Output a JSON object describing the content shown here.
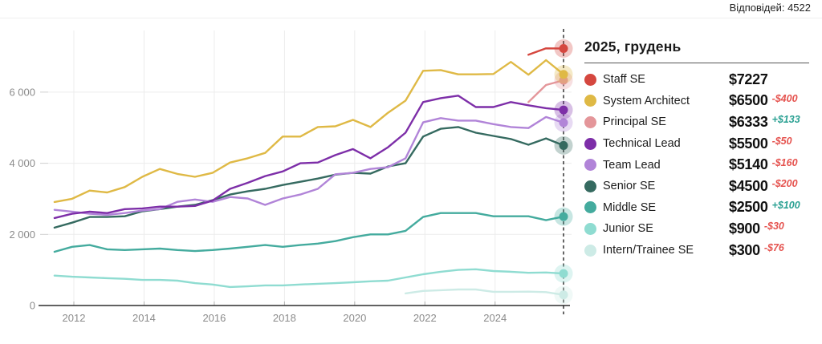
{
  "page": {
    "responses": "Відповідей: 4522"
  },
  "legend": {
    "title": "2025, грудень",
    "rows": [
      {
        "name": "Staff SE",
        "value": "$7227",
        "delta": null,
        "delta_type": null,
        "color": "#d5473f"
      },
      {
        "name": "System Architect",
        "value": "$6500",
        "delta": "-$400",
        "delta_type": "neg",
        "color": "#dfb945"
      },
      {
        "name": "Principal SE",
        "value": "$6333",
        "delta": "+$133",
        "delta_type": "pos",
        "color": "#e4969a"
      },
      {
        "name": "Technical Lead",
        "value": "$5500",
        "delta": "-$50",
        "delta_type": "neg",
        "color": "#7d2ea8"
      },
      {
        "name": "Team Lead",
        "value": "$5140",
        "delta": "-$160",
        "delta_type": "neg",
        "color": "#b184d8"
      },
      {
        "name": "Senior SE",
        "value": "$4500",
        "delta": "-$200",
        "delta_type": "neg",
        "color": "#356a60"
      },
      {
        "name": "Middle SE",
        "value": "$2500",
        "delta": "+$100",
        "delta_type": "pos",
        "color": "#44ab9e"
      },
      {
        "name": "Junior SE",
        "value": "$900",
        "delta": "-$30",
        "delta_type": "neg",
        "color": "#8fdcd1"
      },
      {
        "name": "Intern/Trainee SE",
        "value": "$300",
        "delta": "-$76",
        "delta_type": "neg",
        "color": "#cdebe6"
      }
    ]
  },
  "chart_data": {
    "type": "line",
    "title": "",
    "xlabel": "",
    "ylabel": "",
    "x_axis": {
      "ticks": [
        2012,
        2014,
        2016,
        2018,
        2020,
        2022,
        2024
      ],
      "min": 2010.9,
      "max": 2026.3
    },
    "y_axis": {
      "ticks": [
        {
          "value": 0,
          "label": "0"
        },
        {
          "value": 2000,
          "label": "2 000"
        },
        {
          "value": 4000,
          "label": "4 000"
        },
        {
          "value": 6000,
          "label": "6 000"
        }
      ],
      "min": 0,
      "max": 7700
    },
    "grid": true,
    "legend_position": "right",
    "current_marker_x": 2025.95,
    "series": [
      {
        "name": "Staff SE",
        "color": "#d5473f",
        "x": [
          2024.95,
          2025.45,
          2025.95
        ],
        "values": [
          7050,
          7230,
          7227
        ]
      },
      {
        "name": "System Architect",
        "color": "#dfb945",
        "x": [
          2011.45,
          2011.95,
          2012.45,
          2012.95,
          2013.45,
          2013.95,
          2014.45,
          2014.95,
          2015.45,
          2015.95,
          2016.45,
          2016.95,
          2017.45,
          2017.95,
          2018.45,
          2018.95,
          2019.45,
          2019.95,
          2020.45,
          2020.95,
          2021.45,
          2021.95,
          2022.45,
          2022.95,
          2023.45,
          2023.95,
          2024.45,
          2024.95,
          2025.45,
          2025.95
        ],
        "values": [
          2910,
          3000,
          3230,
          3180,
          3330,
          3620,
          3840,
          3700,
          3620,
          3730,
          4020,
          4140,
          4290,
          4750,
          4750,
          5020,
          5040,
          5220,
          5020,
          5420,
          5760,
          6600,
          6620,
          6500,
          6500,
          6510,
          6850,
          6490,
          6900,
          6500
        ]
      },
      {
        "name": "Principal SE",
        "color": "#e4969a",
        "x": [
          2024.95,
          2025.45,
          2025.95
        ],
        "values": [
          5720,
          6200,
          6333
        ]
      },
      {
        "name": "Technical Lead",
        "color": "#7d2ea8",
        "x": [
          2011.45,
          2011.95,
          2012.45,
          2012.95,
          2013.45,
          2013.95,
          2014.45,
          2014.95,
          2015.45,
          2015.95,
          2016.45,
          2016.95,
          2017.45,
          2017.95,
          2018.45,
          2018.95,
          2019.45,
          2019.95,
          2020.45,
          2020.95,
          2021.45,
          2021.95,
          2022.45,
          2022.95,
          2023.45,
          2023.95,
          2024.45,
          2024.95,
          2025.45,
          2025.95
        ],
        "values": [
          2460,
          2580,
          2640,
          2600,
          2710,
          2730,
          2780,
          2780,
          2800,
          2950,
          3280,
          3450,
          3640,
          3770,
          4000,
          4020,
          4230,
          4400,
          4140,
          4450,
          4860,
          5720,
          5830,
          5900,
          5580,
          5580,
          5720,
          5630,
          5550,
          5500
        ]
      },
      {
        "name": "Team Lead",
        "color": "#b184d8",
        "x": [
          2011.45,
          2011.95,
          2012.45,
          2012.95,
          2013.45,
          2013.95,
          2014.45,
          2014.95,
          2015.45,
          2015.95,
          2016.45,
          2016.95,
          2017.45,
          2017.95,
          2018.45,
          2018.95,
          2019.45,
          2019.95,
          2020.45,
          2020.95,
          2021.45,
          2021.95,
          2022.45,
          2022.95,
          2023.45,
          2023.95,
          2024.45,
          2024.95,
          2025.45,
          2025.95
        ],
        "values": [
          2690,
          2640,
          2580,
          2550,
          2600,
          2670,
          2710,
          2915,
          2980,
          2915,
          3050,
          3010,
          2830,
          3010,
          3120,
          3280,
          3690,
          3730,
          3840,
          3890,
          4140,
          5150,
          5270,
          5200,
          5200,
          5100,
          5020,
          4990,
          5300,
          5140
        ]
      },
      {
        "name": "Senior SE",
        "color": "#356a60",
        "x": [
          2011.45,
          2011.95,
          2012.45,
          2012.95,
          2013.45,
          2013.95,
          2014.45,
          2014.95,
          2015.45,
          2015.95,
          2016.45,
          2016.95,
          2017.45,
          2017.95,
          2018.45,
          2018.95,
          2019.45,
          2019.95,
          2020.45,
          2020.95,
          2021.45,
          2021.95,
          2022.45,
          2022.95,
          2023.45,
          2023.95,
          2024.45,
          2024.95,
          2025.45,
          2025.95
        ],
        "values": [
          2190,
          2330,
          2490,
          2490,
          2510,
          2650,
          2710,
          2780,
          2830,
          2960,
          3120,
          3210,
          3280,
          3390,
          3480,
          3570,
          3680,
          3730,
          3710,
          3910,
          4000,
          4750,
          4970,
          5020,
          4860,
          4770,
          4680,
          4520,
          4700,
          4500
        ]
      },
      {
        "name": "Middle SE",
        "color": "#44ab9e",
        "x": [
          2011.45,
          2011.95,
          2012.45,
          2012.95,
          2013.45,
          2013.95,
          2014.45,
          2014.95,
          2015.45,
          2015.95,
          2016.45,
          2016.95,
          2017.45,
          2017.95,
          2018.45,
          2018.95,
          2019.45,
          2019.95,
          2020.45,
          2020.95,
          2021.45,
          2021.95,
          2022.45,
          2022.95,
          2023.45,
          2023.95,
          2024.45,
          2024.95,
          2025.45,
          2025.95
        ],
        "values": [
          1510,
          1650,
          1700,
          1580,
          1560,
          1580,
          1600,
          1560,
          1530,
          1560,
          1600,
          1650,
          1700,
          1650,
          1700,
          1740,
          1810,
          1920,
          2000,
          2000,
          2100,
          2490,
          2600,
          2600,
          2600,
          2510,
          2510,
          2510,
          2400,
          2500
        ]
      },
      {
        "name": "Junior SE",
        "color": "#8fdcd1",
        "x": [
          2011.45,
          2011.95,
          2012.45,
          2012.95,
          2013.45,
          2013.95,
          2014.45,
          2014.95,
          2015.45,
          2015.95,
          2016.45,
          2016.95,
          2017.45,
          2017.95,
          2018.45,
          2018.95,
          2019.45,
          2019.95,
          2020.45,
          2020.95,
          2021.45,
          2021.95,
          2022.45,
          2022.95,
          2023.45,
          2023.95,
          2024.45,
          2024.95,
          2025.45,
          2025.95
        ],
        "values": [
          840,
          810,
          790,
          770,
          750,
          720,
          720,
          700,
          630,
          590,
          520,
          540,
          565,
          565,
          590,
          610,
          630,
          655,
          680,
          700,
          790,
          880,
          950,
          1000,
          1020,
          970,
          950,
          920,
          930,
          900
        ]
      },
      {
        "name": "Intern/Trainee SE",
        "color": "#cdebe6",
        "x": [
          2021.45,
          2021.95,
          2022.45,
          2022.95,
          2023.45,
          2023.95,
          2024.45,
          2024.95,
          2025.45,
          2025.95
        ],
        "values": [
          340,
          410,
          430,
          450,
          450,
          385,
          385,
          390,
          376,
          300
        ]
      }
    ]
  }
}
